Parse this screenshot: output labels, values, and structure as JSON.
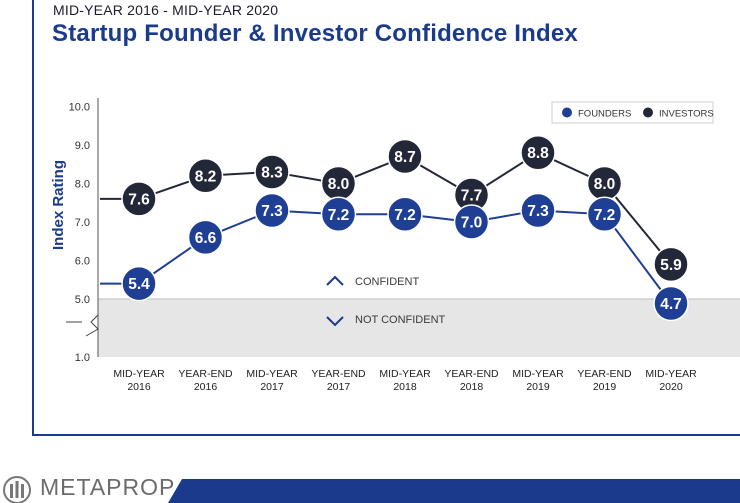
{
  "header": {
    "subtitle": "MID-YEAR 2016 - MID-YEAR 2020",
    "title": "Startup Founder & Investor Confidence Index"
  },
  "footer": {
    "logo_text": "METAPROP",
    "bar_color": "#1a3a8c"
  },
  "colors": {
    "founders": "#1f3f94",
    "investors": "#232838",
    "accent": "#1a3a8c",
    "not_confident_band": "#e6e6e6"
  },
  "chart_data": {
    "type": "line",
    "ylabel": "Index Rating",
    "y_tick_labels": [
      "10.0",
      "9.0",
      "8.0",
      "7.0",
      "6.0",
      "5.0",
      "1.0"
    ],
    "categories": [
      [
        "MID-YEAR",
        "2016"
      ],
      [
        "YEAR-END",
        "2016"
      ],
      [
        "MID-YEAR",
        "2017"
      ],
      [
        "YEAR-END",
        "2017"
      ],
      [
        "MID-YEAR",
        "2018"
      ],
      [
        "YEAR-END",
        "2018"
      ],
      [
        "MID-YEAR",
        "2019"
      ],
      [
        "YEAR-END",
        "2019"
      ],
      [
        "MID-YEAR",
        "2020"
      ]
    ],
    "series": [
      {
        "name": "FOUNDERS",
        "color": "#1f3f94",
        "points": [
          {
            "cat": 0,
            "value": 5.4,
            "label": "5.4"
          },
          {
            "cat": 1,
            "value": 6.6,
            "label": "6.6"
          },
          {
            "cat": 2,
            "value": 7.3,
            "label": "7.3"
          },
          {
            "cat": 3,
            "value": 7.2,
            "label": "7.2"
          },
          {
            "cat": 4,
            "value": 7.2,
            "label": "7.2"
          },
          {
            "cat": 5,
            "value": 7.0,
            "label": "7.0"
          },
          {
            "cat": 6,
            "value": 7.3,
            "label": "7.3"
          },
          {
            "cat": 7,
            "value": 7.2,
            "label": "7.2"
          },
          {
            "cat": 8,
            "value": 4.7,
            "label": "4.7"
          }
        ]
      },
      {
        "name": "INVESTORS",
        "color": "#232838",
        "points": [
          {
            "cat": 0,
            "value": 7.6,
            "label": "7.6"
          },
          {
            "cat": 1,
            "value": 8.2,
            "label": "8.2"
          },
          {
            "cat": 2,
            "value": 8.3,
            "label": "8.3"
          },
          {
            "cat": 3,
            "value": 8.0,
            "label": "8.0"
          },
          {
            "cat": 4,
            "value": 8.7,
            "label": "8.7"
          },
          {
            "cat": 5,
            "value": 7.7,
            "label": "7.7"
          },
          {
            "cat": 6,
            "value": 8.8,
            "label": "8.8"
          },
          {
            "cat": 7,
            "value": 8.0,
            "label": "8.0"
          },
          {
            "cat": 8,
            "value": 5.9,
            "label": "5.9"
          }
        ]
      }
    ],
    "threshold": 5.0,
    "zones": {
      "confident_label": "CONFIDENT",
      "not_confident_label": "NOT CONFIDENT"
    },
    "legend": {
      "position": "top-right",
      "items": [
        "FOUNDERS",
        "INVESTORS"
      ]
    }
  }
}
